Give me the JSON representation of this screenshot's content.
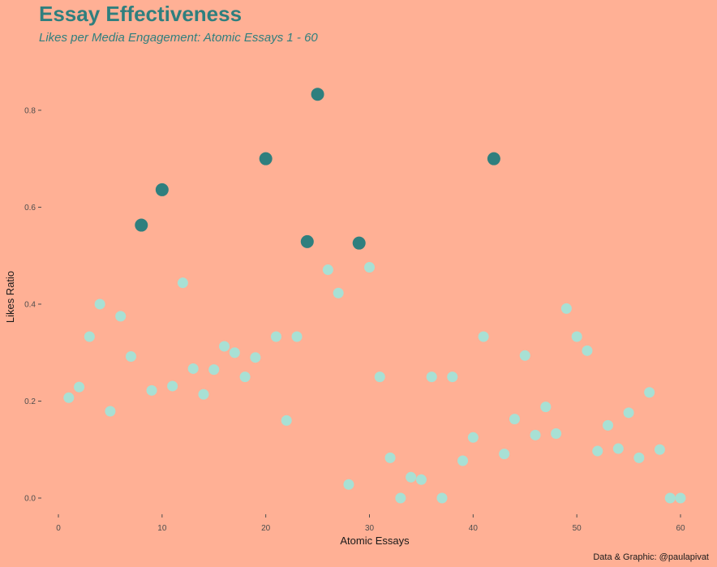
{
  "chart_data": {
    "type": "scatter",
    "title": "Essay Effectiveness",
    "subtitle": "Likes per Media Engagement: Atomic Essays 1 - 60",
    "xlabel": "Atomic Essays",
    "ylabel": "Likes Ratio",
    "caption": "Data & Graphic: @paulapivat",
    "xlim": [
      0,
      60
    ],
    "ylim": [
      0,
      0.83
    ],
    "x_ticks": [
      0,
      10,
      20,
      30,
      40,
      50,
      60
    ],
    "y_ticks": [
      0.0,
      0.2,
      0.4,
      0.6,
      0.8
    ],
    "y_tick_labels": [
      "0.0",
      "0.2",
      "0.4",
      "0.6",
      "0.8"
    ],
    "grid": false,
    "colors": {
      "background": "#FFB095",
      "highlight": "#2F7F7E",
      "normal": "#A8E0D4",
      "title": "#2F7F7E"
    },
    "points": [
      {
        "x": 1,
        "y": 0.207,
        "highlight": false
      },
      {
        "x": 2,
        "y": 0.229,
        "highlight": false
      },
      {
        "x": 3,
        "y": 0.333,
        "highlight": false
      },
      {
        "x": 4,
        "y": 0.4,
        "highlight": false
      },
      {
        "x": 5,
        "y": 0.179,
        "highlight": false
      },
      {
        "x": 6,
        "y": 0.375,
        "highlight": false
      },
      {
        "x": 7,
        "y": 0.292,
        "highlight": false
      },
      {
        "x": 8,
        "y": 0.563,
        "highlight": true
      },
      {
        "x": 9,
        "y": 0.222,
        "highlight": false
      },
      {
        "x": 10,
        "y": 0.636,
        "highlight": true
      },
      {
        "x": 11,
        "y": 0.231,
        "highlight": false
      },
      {
        "x": 12,
        "y": 0.444,
        "highlight": false
      },
      {
        "x": 13,
        "y": 0.267,
        "highlight": false
      },
      {
        "x": 14,
        "y": 0.214,
        "highlight": false
      },
      {
        "x": 15,
        "y": 0.265,
        "highlight": false
      },
      {
        "x": 16,
        "y": 0.313,
        "highlight": false
      },
      {
        "x": 17,
        "y": 0.3,
        "highlight": false
      },
      {
        "x": 18,
        "y": 0.25,
        "highlight": false
      },
      {
        "x": 19,
        "y": 0.29,
        "highlight": false
      },
      {
        "x": 20,
        "y": 0.7,
        "highlight": true
      },
      {
        "x": 21,
        "y": 0.333,
        "highlight": false
      },
      {
        "x": 22,
        "y": 0.16,
        "highlight": false
      },
      {
        "x": 23,
        "y": 0.333,
        "highlight": false
      },
      {
        "x": 24,
        "y": 0.529,
        "highlight": true
      },
      {
        "x": 25,
        "y": 0.833,
        "highlight": true
      },
      {
        "x": 26,
        "y": 0.471,
        "highlight": false
      },
      {
        "x": 27,
        "y": 0.423,
        "highlight": false
      },
      {
        "x": 28,
        "y": 0.028,
        "highlight": false
      },
      {
        "x": 29,
        "y": 0.526,
        "highlight": true
      },
      {
        "x": 30,
        "y": 0.476,
        "highlight": false
      },
      {
        "x": 31,
        "y": 0.25,
        "highlight": false
      },
      {
        "x": 32,
        "y": 0.083,
        "highlight": false
      },
      {
        "x": 33,
        "y": 0.0,
        "highlight": false
      },
      {
        "x": 34,
        "y": 0.043,
        "highlight": false
      },
      {
        "x": 35,
        "y": 0.038,
        "highlight": false
      },
      {
        "x": 36,
        "y": 0.25,
        "highlight": false
      },
      {
        "x": 37,
        "y": 0.0,
        "highlight": false
      },
      {
        "x": 38,
        "y": 0.25,
        "highlight": false
      },
      {
        "x": 39,
        "y": 0.077,
        "highlight": false
      },
      {
        "x": 40,
        "y": 0.125,
        "highlight": false
      },
      {
        "x": 41,
        "y": 0.333,
        "highlight": false
      },
      {
        "x": 42,
        "y": 0.7,
        "highlight": true
      },
      {
        "x": 43,
        "y": 0.091,
        "highlight": false
      },
      {
        "x": 44,
        "y": 0.163,
        "highlight": false
      },
      {
        "x": 45,
        "y": 0.294,
        "highlight": false
      },
      {
        "x": 46,
        "y": 0.13,
        "highlight": false
      },
      {
        "x": 47,
        "y": 0.188,
        "highlight": false
      },
      {
        "x": 48,
        "y": 0.133,
        "highlight": false
      },
      {
        "x": 49,
        "y": 0.391,
        "highlight": false
      },
      {
        "x": 50,
        "y": 0.333,
        "highlight": false
      },
      {
        "x": 51,
        "y": 0.304,
        "highlight": false
      },
      {
        "x": 52,
        "y": 0.097,
        "highlight": false
      },
      {
        "x": 53,
        "y": 0.15,
        "highlight": false
      },
      {
        "x": 54,
        "y": 0.102,
        "highlight": false
      },
      {
        "x": 55,
        "y": 0.176,
        "highlight": false
      },
      {
        "x": 56,
        "y": 0.083,
        "highlight": false
      },
      {
        "x": 57,
        "y": 0.218,
        "highlight": false
      },
      {
        "x": 58,
        "y": 0.1,
        "highlight": false
      },
      {
        "x": 59,
        "y": 0.0,
        "highlight": false
      },
      {
        "x": 60,
        "y": 0.0,
        "highlight": false
      }
    ]
  }
}
